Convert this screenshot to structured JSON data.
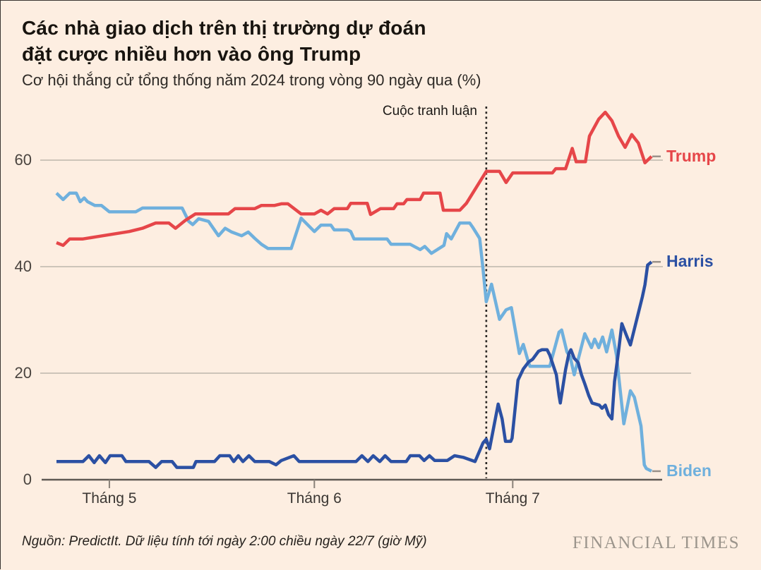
{
  "header": {
    "title_line1": "Các nhà giao dịch trên thị trường dự đoán",
    "title_line2": "đặt cược nhiều hơn vào ông Trump",
    "subtitle": "Cơ hội thắng cử tổng thống năm 2024 trong vòng 90 ngày qua (%)"
  },
  "footer": {
    "source": "Nguồn: PredictIt. Dữ liệu tính tới ngày 2:00 chiều ngày 22/7 (giờ Mỹ)",
    "logo": "FINANCIAL TIMES"
  },
  "colors": {
    "background": "#fdeee1",
    "trump": "#e64649",
    "harris": "#2b50a3",
    "biden": "#6fb0dd",
    "gridline": "#cdc4b9",
    "baseline": "#5f5953",
    "tick": "#8a8279",
    "annotation_line": "#2b2825",
    "value_dash": "#9a9189"
  },
  "chart_data": {
    "type": "line",
    "title": "Các nhà giao dịch trên thị trường dự đoán đặt cược nhiều hơn vào ông Trump",
    "subtitle": "Cơ hội thắng cử tổng thống năm 2024 trong vòng 90 ngày qua (%)",
    "x_description": "90 ngày (ngày 0 ≈ 23/4 đến 22/7)",
    "ylim": [
      0,
      70
    ],
    "grid": "horizontal",
    "legend_position": "right-end-of-line",
    "y_ticks": [
      {
        "value": 60,
        "label": "60"
      },
      {
        "value": 40,
        "label": "40"
      },
      {
        "value": 20,
        "label": "20"
      },
      {
        "value": 0,
        "label": "0"
      }
    ],
    "x_ticks": [
      {
        "day": 8,
        "label": "Tháng 5"
      },
      {
        "day": 39,
        "label": "Tháng 6"
      },
      {
        "day": 69,
        "label": "Tháng 7"
      }
    ],
    "annotation": {
      "day": 65,
      "label": "Cuộc tranh luận"
    },
    "series": [
      {
        "name": "Trump",
        "color": "#e64649",
        "end_value": 60.7,
        "points": [
          [
            0,
            44.5
          ],
          [
            1,
            44
          ],
          [
            2,
            45.2
          ],
          [
            4,
            45.2
          ],
          [
            6,
            45.6
          ],
          [
            9,
            46.2
          ],
          [
            11,
            46.6
          ],
          [
            13,
            47.2
          ],
          [
            15,
            48.2
          ],
          [
            17,
            48.2
          ],
          [
            18,
            47.2
          ],
          [
            19.5,
            48.7
          ],
          [
            21,
            49.9
          ],
          [
            26,
            49.9
          ],
          [
            27,
            50.9
          ],
          [
            30,
            50.9
          ],
          [
            31,
            51.5
          ],
          [
            33,
            51.5
          ],
          [
            34,
            51.8
          ],
          [
            35,
            51.8
          ],
          [
            37,
            49.9
          ],
          [
            39,
            49.9
          ],
          [
            40,
            50.6
          ],
          [
            41,
            49.9
          ],
          [
            42,
            50.9
          ],
          [
            44,
            50.9
          ],
          [
            44.5,
            51.9
          ],
          [
            47,
            51.9
          ],
          [
            47.5,
            49.8
          ],
          [
            49,
            50.9
          ],
          [
            51,
            50.9
          ],
          [
            51.5,
            51.8
          ],
          [
            52.5,
            51.8
          ],
          [
            53,
            52.6
          ],
          [
            55,
            52.6
          ],
          [
            55.5,
            53.8
          ],
          [
            58,
            53.8
          ],
          [
            58.5,
            50.6
          ],
          [
            61,
            50.6
          ],
          [
            62,
            51.9
          ],
          [
            65,
            57.9
          ],
          [
            67,
            57.9
          ],
          [
            68,
            55.8
          ],
          [
            69,
            57.6
          ],
          [
            75,
            57.6
          ],
          [
            75.5,
            58.4
          ],
          [
            77,
            58.4
          ],
          [
            77.3,
            59.5
          ],
          [
            78,
            62.2
          ],
          [
            78.6,
            59.7
          ],
          [
            80,
            59.7
          ],
          [
            80.6,
            64.5
          ],
          [
            82,
            67.7
          ],
          [
            83,
            69
          ],
          [
            84,
            67.4
          ],
          [
            85,
            64.5
          ],
          [
            86,
            62.4
          ],
          [
            87,
            64.8
          ],
          [
            88,
            63.2
          ],
          [
            89,
            59.5
          ],
          [
            90,
            60.7
          ]
        ]
      },
      {
        "name": "Harris",
        "color": "#2b50a3",
        "end_value": 40.9,
        "points": [
          [
            0,
            3.4
          ],
          [
            4,
            3.4
          ],
          [
            4.9,
            4.5
          ],
          [
            5.7,
            3.2
          ],
          [
            6.5,
            4.5
          ],
          [
            7.4,
            3.2
          ],
          [
            8.1,
            4.5
          ],
          [
            9.9,
            4.5
          ],
          [
            10.5,
            3.4
          ],
          [
            14,
            3.4
          ],
          [
            15,
            2.3
          ],
          [
            15.9,
            3.4
          ],
          [
            17.5,
            3.4
          ],
          [
            18.2,
            2.3
          ],
          [
            20.7,
            2.3
          ],
          [
            21.1,
            3.4
          ],
          [
            23.9,
            3.4
          ],
          [
            24.7,
            4.5
          ],
          [
            26.2,
            4.5
          ],
          [
            26.8,
            3.4
          ],
          [
            27.5,
            4.5
          ],
          [
            28.2,
            3.4
          ],
          [
            29.1,
            4.5
          ],
          [
            30,
            3.4
          ],
          [
            32.2,
            3.4
          ],
          [
            33.2,
            2.8
          ],
          [
            34,
            3.6
          ],
          [
            35.9,
            4.5
          ],
          [
            36.7,
            3.4
          ],
          [
            45.3,
            3.4
          ],
          [
            46.2,
            4.5
          ],
          [
            47.1,
            3.4
          ],
          [
            47.9,
            4.5
          ],
          [
            48.9,
            3.4
          ],
          [
            49.7,
            4.5
          ],
          [
            50.6,
            3.4
          ],
          [
            52.9,
            3.4
          ],
          [
            53.5,
            4.5
          ],
          [
            54.9,
            4.5
          ],
          [
            55.6,
            3.6
          ],
          [
            56.4,
            4.5
          ],
          [
            57.2,
            3.6
          ],
          [
            59.1,
            3.6
          ],
          [
            60.2,
            4.5
          ],
          [
            61.5,
            4.2
          ],
          [
            63.3,
            3.4
          ],
          [
            64.5,
            6.9
          ],
          [
            65,
            7.6
          ],
          [
            65.5,
            5.8
          ],
          [
            66.8,
            14.2
          ],
          [
            67.4,
            11.4
          ],
          [
            67.9,
            7.2
          ],
          [
            68.7,
            7.2
          ],
          [
            68.9,
            7.8
          ],
          [
            69.8,
            18.7
          ],
          [
            70.6,
            20.8
          ],
          [
            71.4,
            22.1
          ],
          [
            72,
            22.6
          ],
          [
            72.9,
            24.1
          ],
          [
            73.4,
            24.4
          ],
          [
            74.2,
            24.4
          ],
          [
            74.6,
            23.4
          ],
          [
            75.6,
            19.7
          ],
          [
            76,
            15.8
          ],
          [
            76.2,
            14.4
          ],
          [
            77,
            20.7
          ],
          [
            77.5,
            23.7
          ],
          [
            77.8,
            24.4
          ],
          [
            78.3,
            22.8
          ],
          [
            78.9,
            22
          ],
          [
            79.4,
            19.7
          ],
          [
            79.9,
            18
          ],
          [
            80.5,
            15.8
          ],
          [
            81,
            14.4
          ],
          [
            82.1,
            14
          ],
          [
            82.5,
            13.4
          ],
          [
            83,
            14
          ],
          [
            83.5,
            12.2
          ],
          [
            84,
            11.4
          ],
          [
            84.4,
            18.4
          ],
          [
            85,
            24.1
          ],
          [
            85.5,
            29.3
          ],
          [
            86.3,
            26.8
          ],
          [
            86.8,
            25.3
          ],
          [
            87.8,
            30.3
          ],
          [
            88.6,
            34.3
          ],
          [
            89,
            36.6
          ],
          [
            89.4,
            40.3
          ],
          [
            90,
            40.9
          ]
        ]
      },
      {
        "name": "Biden",
        "color": "#6fb0dd",
        "end_value": 1.6,
        "points": [
          [
            0,
            53.8
          ],
          [
            1,
            52.6
          ],
          [
            2,
            53.8
          ],
          [
            3,
            53.8
          ],
          [
            3.6,
            52.2
          ],
          [
            4.2,
            52.9
          ],
          [
            4.7,
            52.2
          ],
          [
            5.8,
            51.5
          ],
          [
            6.8,
            51.5
          ],
          [
            8,
            50.3
          ],
          [
            12,
            50.3
          ],
          [
            13,
            51
          ],
          [
            19,
            51
          ],
          [
            20,
            48.5
          ],
          [
            20.6,
            47.9
          ],
          [
            21.5,
            49
          ],
          [
            23,
            48.5
          ],
          [
            24.5,
            45.8
          ],
          [
            25.5,
            47.2
          ],
          [
            26.5,
            46.5
          ],
          [
            28,
            45.8
          ],
          [
            29,
            46.5
          ],
          [
            30,
            45.3
          ],
          [
            31,
            44.2
          ],
          [
            32,
            43.4
          ],
          [
            35.5,
            43.4
          ],
          [
            37,
            49.1
          ],
          [
            39,
            46.6
          ],
          [
            40,
            47.8
          ],
          [
            41.5,
            47.8
          ],
          [
            42,
            46.9
          ],
          [
            44,
            46.9
          ],
          [
            44.5,
            46.6
          ],
          [
            45,
            45.2
          ],
          [
            50,
            45.2
          ],
          [
            50.6,
            44.2
          ],
          [
            53.5,
            44.2
          ],
          [
            55,
            43.2
          ],
          [
            55.7,
            43.8
          ],
          [
            56.7,
            42.5
          ],
          [
            58.6,
            44
          ],
          [
            59,
            46.2
          ],
          [
            59.7,
            45.2
          ],
          [
            61,
            48.2
          ],
          [
            62.5,
            48.2
          ],
          [
            63,
            47.3
          ],
          [
            64,
            45.3
          ],
          [
            64.5,
            39.6
          ],
          [
            65,
            33.4
          ],
          [
            65.8,
            36.7
          ],
          [
            67,
            30.1
          ],
          [
            68,
            31.9
          ],
          [
            68.8,
            32.3
          ],
          [
            70,
            23.7
          ],
          [
            70.6,
            25.4
          ],
          [
            71.3,
            22.4
          ],
          [
            71.6,
            21.3
          ],
          [
            74.6,
            21.3
          ],
          [
            76,
            27.7
          ],
          [
            76.4,
            28.1
          ],
          [
            77.2,
            24
          ],
          [
            77.7,
            23
          ],
          [
            78.3,
            19.7
          ],
          [
            79.9,
            27.4
          ],
          [
            80.9,
            24.8
          ],
          [
            81.4,
            26.4
          ],
          [
            82,
            24.8
          ],
          [
            82.6,
            26.8
          ],
          [
            83.2,
            24
          ],
          [
            84,
            28.1
          ],
          [
            84.7,
            23.3
          ],
          [
            85,
            19.7
          ],
          [
            85.8,
            10.5
          ],
          [
            86.8,
            16.7
          ],
          [
            87.4,
            15.5
          ],
          [
            88.4,
            10.1
          ],
          [
            88.9,
            2.8
          ],
          [
            89.2,
            2.1
          ],
          [
            90,
            1.6
          ]
        ]
      }
    ]
  }
}
